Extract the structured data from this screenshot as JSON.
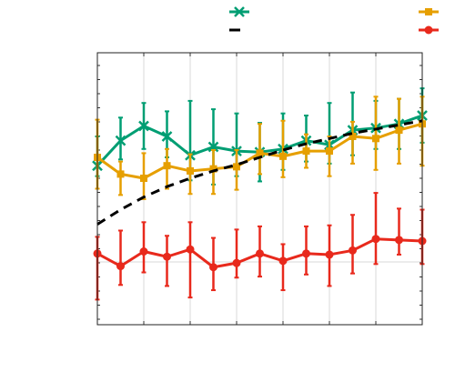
{
  "chart_data": {
    "type": "line",
    "title": "",
    "xlabel": "",
    "ylabel": "",
    "x": [
      0,
      1,
      2,
      3,
      4,
      5,
      6,
      7,
      8,
      9,
      10,
      11,
      12,
      13,
      14
    ],
    "xlim": [
      0,
      14
    ],
    "ylim": [
      0,
      100
    ],
    "grid": true,
    "legend": "top",
    "series": [
      {
        "key": "green",
        "color": "#009E73",
        "style": "solid",
        "marker": "x",
        "values": [
          46,
          58,
          65,
          60,
          51,
          55,
          53,
          52.5,
          54,
          58,
          56,
          63,
          64,
          66,
          70
        ],
        "err_low": [
          5,
          9,
          11,
          10,
          12,
          18,
          12,
          14,
          10,
          10,
          9,
          12,
          10,
          12,
          13
        ],
        "err_high": [
          14,
          11,
          11,
          12,
          26,
          18,
          18,
          14,
          17,
          12,
          20,
          18,
          13,
          12,
          13
        ]
      },
      {
        "key": "yellow",
        "color": "#E69F00",
        "style": "solid",
        "marker": "square",
        "values": [
          50,
          42,
          40,
          46,
          43.5,
          44.5,
          45.5,
          52,
          50.5,
          53,
          53,
          60,
          59,
          63,
          66
        ],
        "err_low": [
          15,
          10,
          10,
          11,
          11,
          12,
          11,
          10,
          10,
          8,
          12,
          13,
          15,
          16,
          20
        ],
        "err_high": [
          18,
          6,
          12,
          8,
          8,
          9,
          8,
          14,
          17,
          8,
          7,
          7,
          20,
          15,
          13
        ]
      },
      {
        "key": "red",
        "color": "#E8291C",
        "style": "solid",
        "marker": "circle",
        "values": [
          4,
          -2,
          5,
          2.5,
          6,
          -2.5,
          -0.5,
          4,
          0.5,
          4,
          3.5,
          5.5,
          11,
          10.5,
          10
        ],
        "err_low": [
          22,
          9,
          10,
          14,
          23,
          11,
          7,
          11,
          14,
          10,
          15,
          11,
          12,
          7,
          11
        ],
        "err_high": [
          8,
          17,
          14,
          10,
          13,
          14,
          16,
          13,
          8,
          13,
          14,
          17,
          22,
          15,
          15
        ]
      },
      {
        "key": "black",
        "color": "#000000",
        "style": "dashed",
        "marker": "none",
        "values": [
          18,
          25,
          31,
          36,
          40,
          43.5,
          46.5,
          50,
          53.5,
          56.5,
          59,
          61.5,
          63.5,
          65.5,
          67.5
        ]
      }
    ]
  }
}
